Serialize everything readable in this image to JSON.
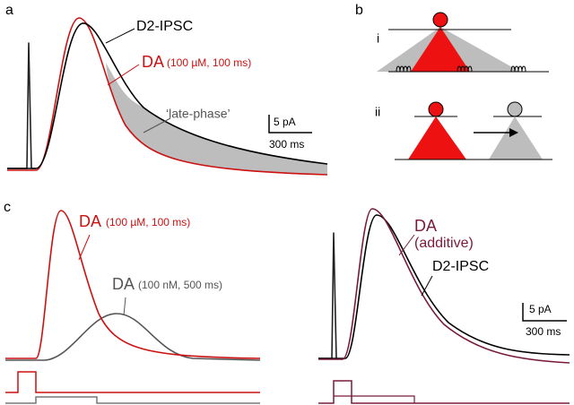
{
  "panel_a": {
    "label": "a",
    "d2_ipsc": "D2-IPSC",
    "da": "DA",
    "da_condition": "(100 µM, 100 ms)",
    "late_phase": "‘late-phase’",
    "scale_y": "5 pA",
    "scale_x": "300 ms"
  },
  "panel_b": {
    "label": "b",
    "sub_i": "i",
    "sub_ii": "ii"
  },
  "panel_c": {
    "label": "c",
    "da_high": "DA",
    "da_high_condition": "(100 µM, 100 ms)",
    "da_low": "DA",
    "da_low_condition": "(100 nM, 500 ms)",
    "da_additive": "DA",
    "additive": "(additive)",
    "d2_ipsc": "D2-IPSC",
    "scale_y": "5 pA",
    "scale_x": "300 ms"
  }
}
